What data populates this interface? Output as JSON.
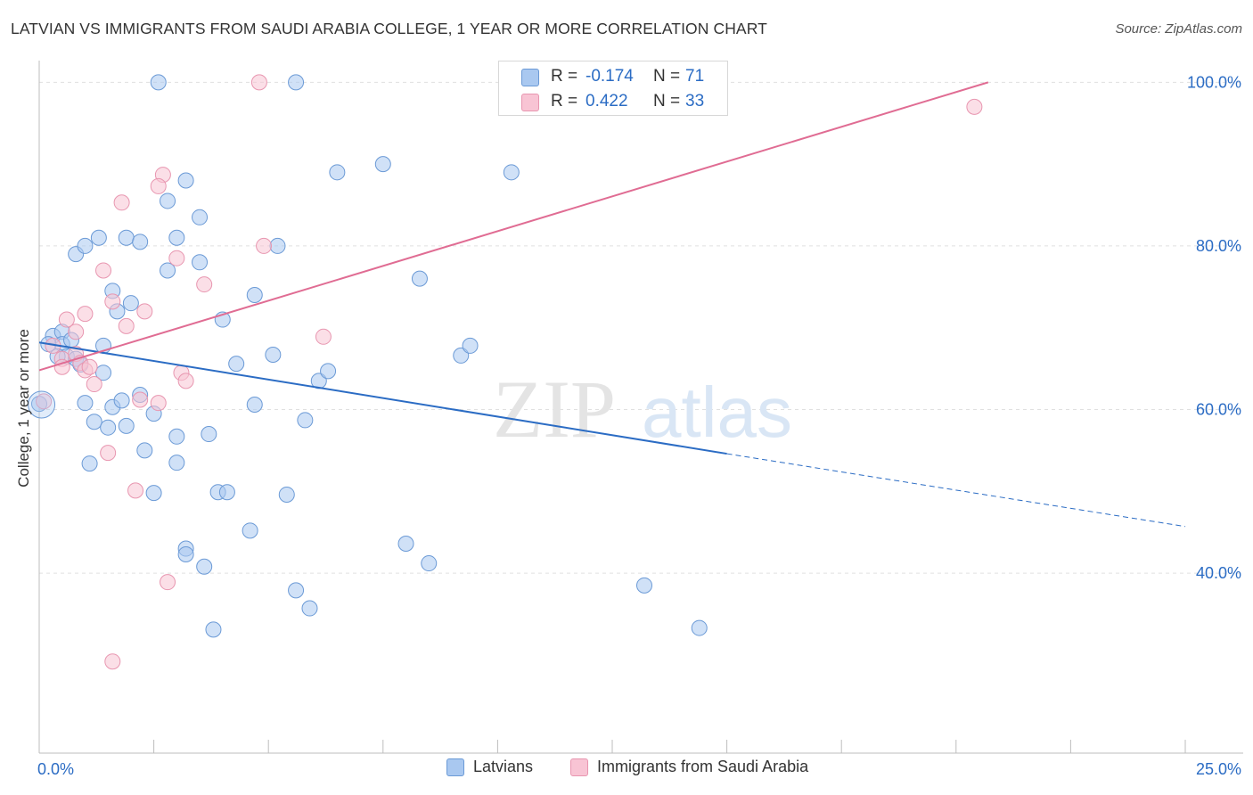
{
  "title": "LATVIAN VS IMMIGRANTS FROM SAUDI ARABIA COLLEGE, 1 YEAR OR MORE CORRELATION CHART",
  "source": "Source: ZipAtlas.com",
  "watermark": {
    "zip": "ZIP",
    "atlas": "atlas"
  },
  "stats": [
    {
      "label": "R =",
      "value": "-0.174",
      "n_label": "N =",
      "n_value": "71",
      "color": "#a9c8f0"
    },
    {
      "label": "R =",
      "value": "0.422",
      "n_label": "N =",
      "n_value": "33",
      "color": "#f8c4d4"
    }
  ],
  "legend": [
    {
      "label": "Latvians",
      "color": "#a9c8f0"
    },
    {
      "label": "Immigrants from Saudi Arabia",
      "color": "#f8c4d4"
    }
  ],
  "chart_data": {
    "type": "scatter",
    "title": "LATVIAN VS IMMIGRANTS FROM SAUDI ARABIA COLLEGE, 1 YEAR OR MORE CORRELATION CHART",
    "xlabel": "",
    "ylabel": "College, 1 year or more",
    "xlim": [
      0,
      25
    ],
    "ylim": [
      18,
      102
    ],
    "x_tick_labels": [
      {
        "value": 0,
        "label": "0.0%"
      },
      {
        "value": 25,
        "label": "25.0%"
      }
    ],
    "y_tick_labels": [
      {
        "value": 40,
        "label": "40.0%"
      },
      {
        "value": 60,
        "label": "60.0%"
      },
      {
        "value": 80,
        "label": "80.0%"
      },
      {
        "value": 100,
        "label": "100.0%"
      }
    ],
    "x_minor_ticks": [
      2.5,
      5,
      7.5,
      10,
      12.5,
      15,
      17.5,
      20,
      22.5,
      25
    ],
    "y_gridlines": [
      40,
      60,
      80,
      100
    ],
    "series": [
      {
        "name": "Latvians",
        "color": "#a9c8f0",
        "stroke": "#6b9ad6",
        "R": -0.174,
        "N": 71,
        "trend": {
          "x0": 0,
          "y0": 68.2,
          "x1": 15,
          "y1": 54.6,
          "dash_to_x": 25,
          "dash_to_y": 45.7,
          "color": "#2b6cc4"
        },
        "points": [
          [
            2.6,
            100
          ],
          [
            5.6,
            100
          ],
          [
            6.5,
            89
          ],
          [
            3.2,
            88
          ],
          [
            7.5,
            90
          ],
          [
            10.3,
            89
          ],
          [
            1.3,
            81
          ],
          [
            1.9,
            81
          ],
          [
            2.2,
            80.5
          ],
          [
            3.0,
            81
          ],
          [
            5.2,
            80
          ],
          [
            3.5,
            78
          ],
          [
            3.5,
            83.5
          ],
          [
            0.8,
            79
          ],
          [
            1.0,
            80
          ],
          [
            2.8,
            77
          ],
          [
            2.8,
            85.5
          ],
          [
            4.7,
            74
          ],
          [
            1.6,
            74.5
          ],
          [
            1.7,
            72
          ],
          [
            2.0,
            73
          ],
          [
            4.0,
            71
          ],
          [
            0.3,
            69
          ],
          [
            0.5,
            69.5
          ],
          [
            0.5,
            68
          ],
          [
            0.7,
            68.5
          ],
          [
            1.4,
            67.8
          ],
          [
            0.6,
            66.5
          ],
          [
            0.8,
            66.2
          ],
          [
            0.4,
            66.5
          ],
          [
            8.3,
            76
          ],
          [
            0.2,
            68
          ],
          [
            0.0,
            60.7
          ],
          [
            0.9,
            65.5
          ],
          [
            1.4,
            64.5
          ],
          [
            4.3,
            65.6
          ],
          [
            5.1,
            66.7
          ],
          [
            6.1,
            63.5
          ],
          [
            9.2,
            66.6
          ],
          [
            1.0,
            60.8
          ],
          [
            1.6,
            60.3
          ],
          [
            1.8,
            61.1
          ],
          [
            2.5,
            59.5
          ],
          [
            1.2,
            58.5
          ],
          [
            1.5,
            57.8
          ],
          [
            1.9,
            58.0
          ],
          [
            3.0,
            56.7
          ],
          [
            3.7,
            57.0
          ],
          [
            4.7,
            60.6
          ],
          [
            5.8,
            58.7
          ],
          [
            2.3,
            55.0
          ],
          [
            3.0,
            53.5
          ],
          [
            1.1,
            53.4
          ],
          [
            2.5,
            49.8
          ],
          [
            3.9,
            49.9
          ],
          [
            4.1,
            49.9
          ],
          [
            5.4,
            49.6
          ],
          [
            4.6,
            45.2
          ],
          [
            3.2,
            43.0
          ],
          [
            3.2,
            42.3
          ],
          [
            3.6,
            40.8
          ],
          [
            8.0,
            43.6
          ],
          [
            8.5,
            41.2
          ],
          [
            13.2,
            38.5
          ],
          [
            5.6,
            37.9
          ],
          [
            5.9,
            35.7
          ],
          [
            3.8,
            33.1
          ],
          [
            14.4,
            33.3
          ],
          [
            9.4,
            67.8
          ],
          [
            6.3,
            64.7
          ],
          [
            2.2,
            61.8
          ]
        ]
      },
      {
        "name": "Immigrants from Saudi Arabia",
        "color": "#f8c4d4",
        "stroke": "#e896b0",
        "R": 0.422,
        "N": 33,
        "trend": {
          "x0": 0,
          "y0": 64.8,
          "x1": 20.7,
          "y1": 100,
          "color": "#e06c93"
        },
        "points": [
          [
            4.8,
            100
          ],
          [
            20.4,
            97
          ],
          [
            2.7,
            88.7
          ],
          [
            2.6,
            87.3
          ],
          [
            1.8,
            85.3
          ],
          [
            4.9,
            80
          ],
          [
            3.0,
            78.5
          ],
          [
            1.4,
            77
          ],
          [
            3.6,
            75.3
          ],
          [
            1.0,
            71.7
          ],
          [
            1.6,
            73.2
          ],
          [
            2.3,
            72.0
          ],
          [
            0.6,
            71.0
          ],
          [
            1.9,
            70.2
          ],
          [
            0.8,
            69.5
          ],
          [
            6.2,
            68.9
          ],
          [
            0.3,
            67.8
          ],
          [
            0.5,
            66.2
          ],
          [
            0.8,
            66.8
          ],
          [
            0.9,
            65.7
          ],
          [
            0.5,
            65.2
          ],
          [
            1.0,
            64.8
          ],
          [
            3.1,
            64.5
          ],
          [
            3.2,
            63.5
          ],
          [
            1.2,
            63.1
          ],
          [
            1.1,
            65.2
          ],
          [
            0.1,
            61.0
          ],
          [
            2.2,
            61.2
          ],
          [
            2.6,
            60.8
          ],
          [
            1.5,
            54.7
          ],
          [
            2.1,
            50.1
          ],
          [
            2.8,
            38.9
          ],
          [
            1.6,
            29.2
          ]
        ]
      }
    ]
  }
}
